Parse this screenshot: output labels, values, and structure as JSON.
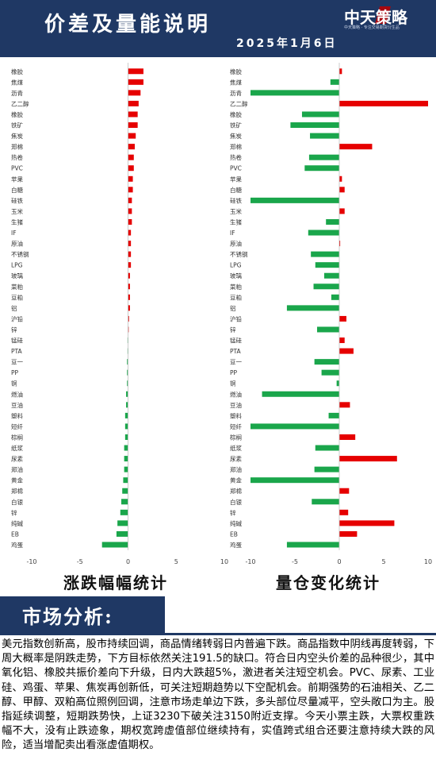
{
  "header": {
    "title": "价差及量能说明",
    "date": "2025年1月6日",
    "logo_text": "中天策略",
    "logo_sub": "中天策略 · 专注交易期货衍生品"
  },
  "colors": {
    "header_bg": "#1f3864",
    "up": "#e60000",
    "down": "#1aa64b"
  },
  "captions": {
    "left": "涨跌幅幅统计",
    "right": "量仓变化统计"
  },
  "section_title": "市场分析:",
  "analysis_text": "美元指数创新高，股市持续回调，商品情绪转弱日内普遍下跌。商品指数中阴线再度转弱，下周大概率是阴跌走势，下方目标依然关注191.5的缺口。符合日内空头价差的品种很少，其中氧化铝、橡胶共振价差向下升级，日内大跌超5%，激进者关注短空机会。PVC、尿素、工业硅、鸡蛋、苹果、焦炭再创新低，可关注短期趋势以下空配机会。前期强势的石油相关、乙二醇、甲醇、双粕高位照例回调，注意市场走单边下跌，多头部位尽量减平，空头敞口为主。股指延续调整，短期跌势快，上证3230下破关注3150附近支撑。今天小票主跌，大票权重跌幅不大，没有止跌迹象，期权宽跨虚值部位继续持有，实值跨式组合还要注意持续大跌的风险，适当增配卖出看涨虚值期权。",
  "chart_data": [
    {
      "type": "bar",
      "orientation": "horizontal",
      "title": "涨跌幅幅统计",
      "categories": [
        "橡胶",
        "焦煤",
        "沥青",
        "乙二醇",
        "橡胶",
        "铁矿",
        "焦炭",
        "郑棉",
        "热卷",
        "PVC",
        "苹果",
        "白糖",
        "硅铁",
        "玉米",
        "生猪",
        "IF",
        "原油",
        "不锈钢",
        "LPG",
        "玻璃",
        "菜粕",
        "豆粕",
        "铝",
        "沪铅",
        "锌",
        "锰硅",
        "PTA",
        "豆一",
        "PP",
        "铜",
        "燃油",
        "豆油",
        "塑料",
        "短纤",
        "棕榈",
        "纸浆",
        "尿素",
        "郑油",
        "黄金",
        "郑棉",
        "白银",
        "锌",
        "纯碱",
        "EB",
        "鸡蛋"
      ],
      "values": [
        1.6,
        1.6,
        1.3,
        1.1,
        1.0,
        1.0,
        0.8,
        0.7,
        0.6,
        0.6,
        0.5,
        0.5,
        0.4,
        0.4,
        0.4,
        0.3,
        0.3,
        0.3,
        0.3,
        0.2,
        0.2,
        0.2,
        0.2,
        0.1,
        0.05,
        -0.05,
        -0.05,
        -0.1,
        -0.1,
        -0.1,
        -0.2,
        -0.2,
        -0.3,
        -0.3,
        -0.3,
        -0.4,
        -0.4,
        -0.4,
        -0.5,
        -0.6,
        -0.7,
        -0.8,
        -1.1,
        -1.2,
        -2.7
      ],
      "xlim": [
        -10,
        10
      ],
      "xticks": [
        "-10",
        "-5",
        "0",
        "5",
        "10"
      ]
    },
    {
      "type": "bar",
      "orientation": "horizontal",
      "title": "量仓变化统计",
      "categories": [
        "橡胶",
        "焦煤",
        "沥青",
        "乙二醇",
        "橡胶",
        "铁矿",
        "焦炭",
        "郑棉",
        "热卷",
        "PVC",
        "苹果",
        "白糖",
        "硅铁",
        "玉米",
        "生猪",
        "IF",
        "原油",
        "不锈钢",
        "LPG",
        "玻璃",
        "菜粕",
        "豆粕",
        "铝",
        "沪铅",
        "锌",
        "锰硅",
        "PTA",
        "豆一",
        "PP",
        "铜",
        "燃油",
        "豆油",
        "塑料",
        "短纤",
        "棕榈",
        "纸浆",
        "尿素",
        "郑油",
        "黄金",
        "郑棉",
        "白银",
        "锌",
        "纯碱",
        "EB",
        "鸡蛋"
      ],
      "values": [
        0.3,
        -1.0,
        -10.0,
        10.0,
        -4.2,
        -5.5,
        -3.3,
        3.7,
        -3.4,
        -3.9,
        0.3,
        0.6,
        -10.0,
        0.6,
        -1.5,
        -3.5,
        0.1,
        -3.2,
        -2.7,
        -1.7,
        -2.9,
        -0.9,
        -5.9,
        0.8,
        -2.5,
        0.6,
        1.6,
        -2.8,
        -2.0,
        -0.3,
        -8.7,
        1.2,
        -1.2,
        -10.0,
        1.8,
        -2.7,
        6.5,
        -2.8,
        -10.0,
        1.1,
        -3.1,
        1.0,
        6.2,
        2.0,
        -5.9
      ],
      "xlim": [
        -10,
        10
      ],
      "xticks": [
        "-10",
        "-5",
        "0",
        "5",
        "10"
      ]
    }
  ]
}
